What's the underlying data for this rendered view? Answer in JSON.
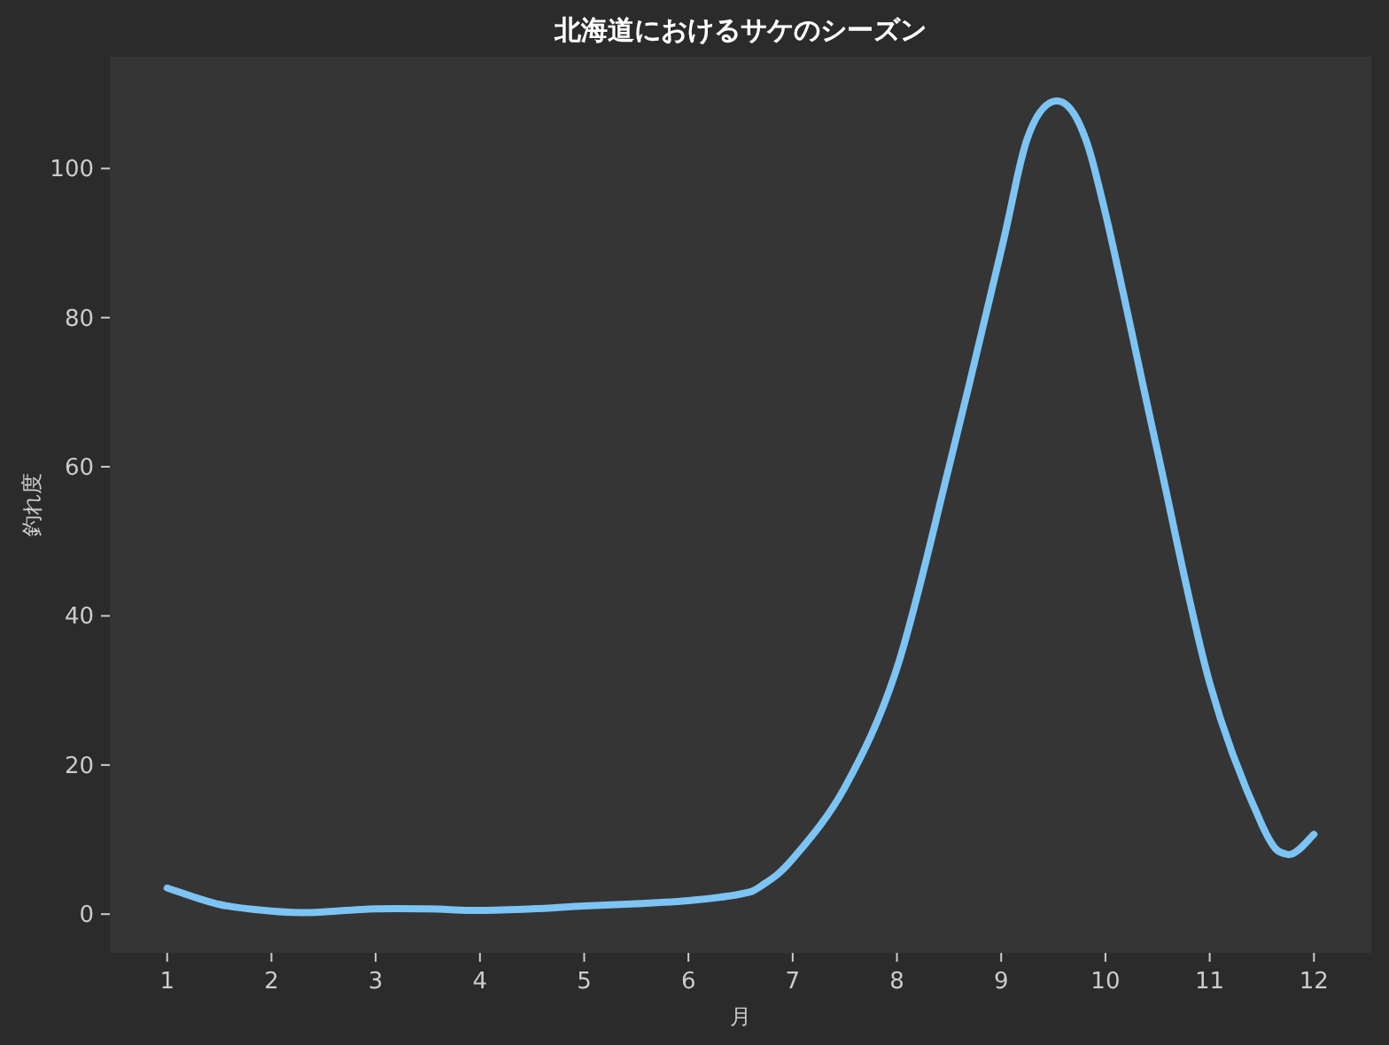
{
  "chart_data": {
    "type": "line",
    "title": "北海道におけるサケのシーズン",
    "xlabel": "月",
    "ylabel": "釣れ度",
    "x": [
      1,
      1.5,
      2,
      2.3,
      2.5,
      3,
      3.5,
      4,
      4.5,
      5,
      5.5,
      6,
      6.5,
      6.7,
      7,
      7.5,
      8,
      8.5,
      9,
      9.25,
      9.5,
      9.75,
      10,
      10.5,
      11,
      11.5,
      11.75,
      12
    ],
    "series": [
      {
        "color": "#7cc4f4",
        "values": [
          3.5,
          1.3,
          0.4,
          0.2,
          0.3,
          0.7,
          0.7,
          0.5,
          0.7,
          1.1,
          1.4,
          1.8,
          2.7,
          3.8,
          7.4,
          17,
          33,
          60,
          89,
          104,
          109,
          106,
          94,
          62,
          31,
          12,
          8,
          10.7
        ]
      }
    ],
    "xlim": [
      0.45,
      12.55
    ],
    "ylim": [
      -5.2,
      115
    ],
    "xticks": [
      1,
      2,
      3,
      4,
      5,
      6,
      7,
      8,
      9,
      10,
      11,
      12
    ],
    "yticks": [
      0,
      20,
      40,
      60,
      80,
      100
    ],
    "grid": false,
    "line_style": "solid"
  }
}
